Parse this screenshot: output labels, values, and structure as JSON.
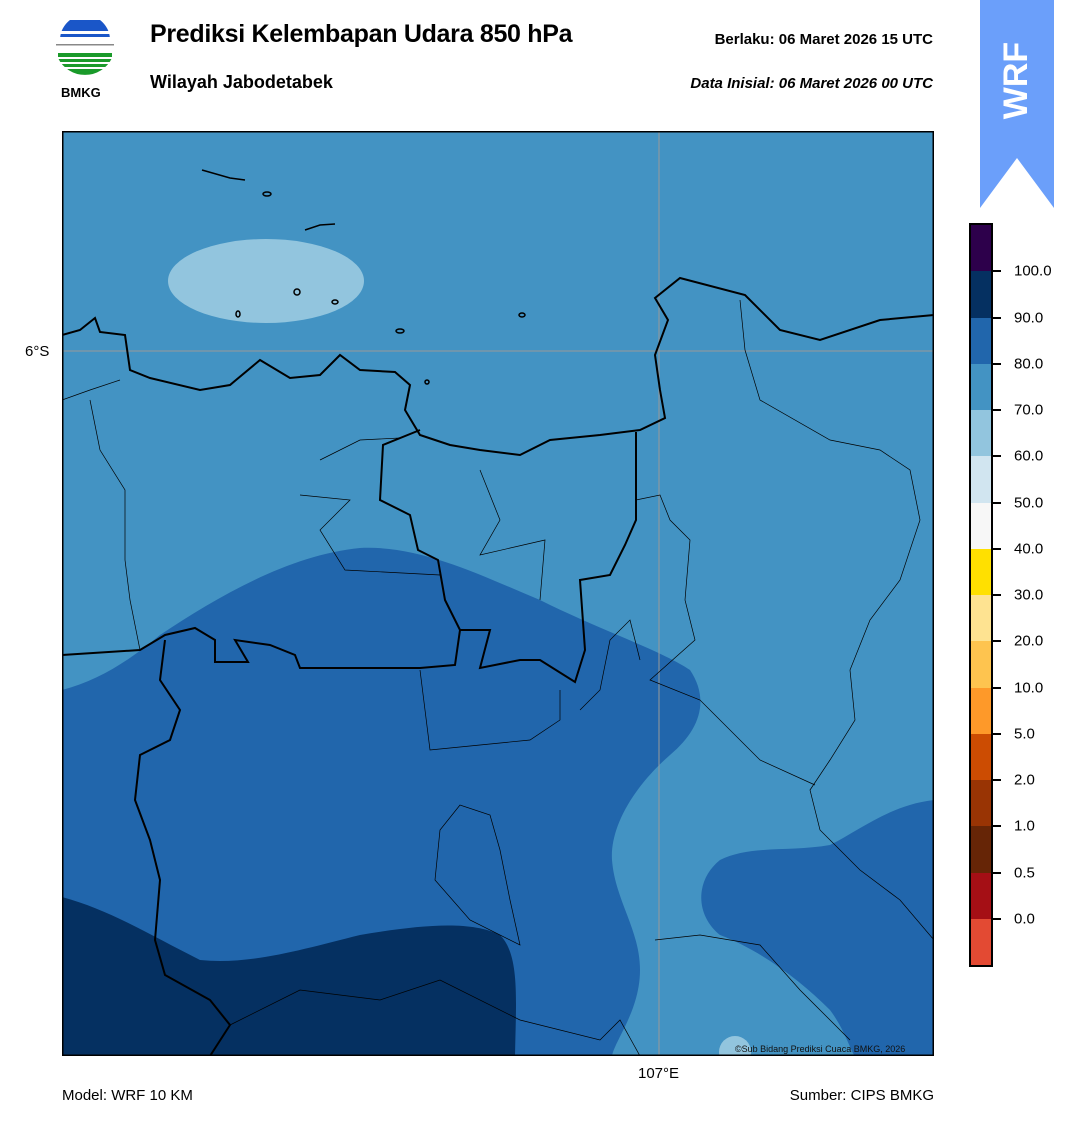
{
  "header": {
    "title": "Prediksi Kelembapan Udara 850 hPa",
    "subtitle": "Wilayah Jabodetabek",
    "valid_label": "Berlaku:  06 Maret 2026 15 UTC",
    "initial_label": "Data Inisial:  06 Maret 2026 00 UTC",
    "logo_text": "BMKG",
    "ribbon_text": "WRF"
  },
  "map": {
    "lat_label": "6°S",
    "lon_label": "107°E",
    "copyright": "©Sub Bidang Prediksi Cuaca BMKG, 2026",
    "colors": {
      "60-70": "#92c5de",
      "70-80": "#4393c3",
      "80-90": "#2166ac",
      "90-100": "#053061"
    }
  },
  "colorbar": {
    "labels": [
      "100.0",
      "90.0",
      "80.0",
      "70.0",
      "60.0",
      "50.0",
      "40.0",
      "30.0",
      "20.0",
      "10.0",
      "5.0",
      "2.0",
      "1.0",
      "0.5",
      "0.0"
    ],
    "colors": [
      "#2d004b",
      "#053061",
      "#2166ac",
      "#4393c3",
      "#92c5de",
      "#d1e5f0",
      "#f7f7f7",
      "#ffe000",
      "#fee391",
      "#fec44f",
      "#fe9929",
      "#cc4c02",
      "#993404",
      "#662506",
      "#a50f15",
      "#e34a33"
    ]
  },
  "footer": {
    "model": "Model: WRF 10 KM",
    "source": "Sumber: CIPS BMKG"
  }
}
